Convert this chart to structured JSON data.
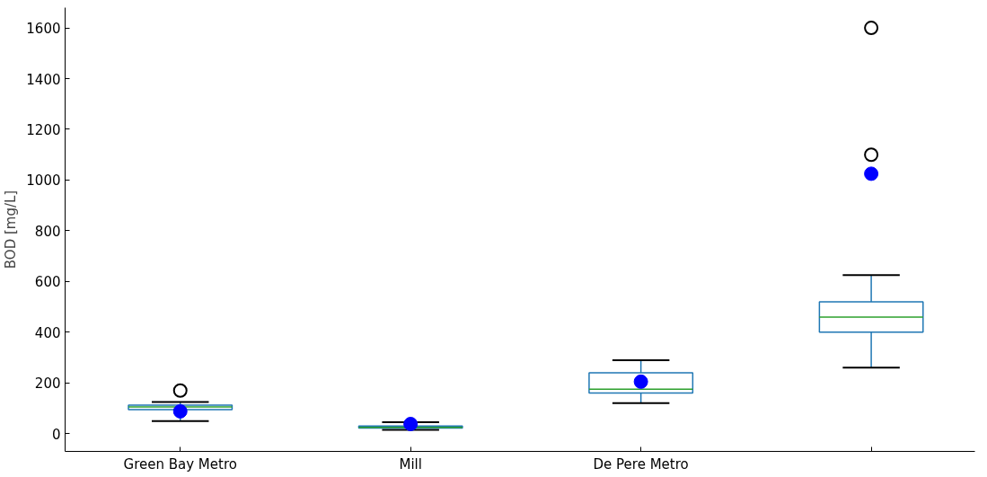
{
  "chart_data": {
    "type": "box",
    "ylabel": "BOD [mg/L]",
    "categories": [
      "Green Bay Metro",
      "Mill",
      "De Pere Metro",
      null
    ],
    "boxes": [
      {
        "low": 50,
        "q1": 95,
        "median": 105,
        "q3": 112,
        "high": 125,
        "mean": 88,
        "outliers": [
          170
        ]
      },
      {
        "low": 15,
        "q1": 22,
        "median": 25,
        "q3": 30,
        "high": 45,
        "mean": 38
      },
      {
        "low": 120,
        "q1": 160,
        "median": 175,
        "q3": 240,
        "high": 290,
        "mean": 205
      },
      {
        "low": 260,
        "q1": 400,
        "median": 460,
        "q3": 520,
        "high": 625,
        "mean": 1025,
        "outliers": [
          1100,
          1600
        ]
      }
    ],
    "color": "#1f77b4",
    "ylim": [
      -70,
      1680
    ],
    "yticks": [
      0,
      200,
      400,
      600,
      800,
      1000,
      1200,
      1400,
      1600
    ],
    "grid": false
  }
}
